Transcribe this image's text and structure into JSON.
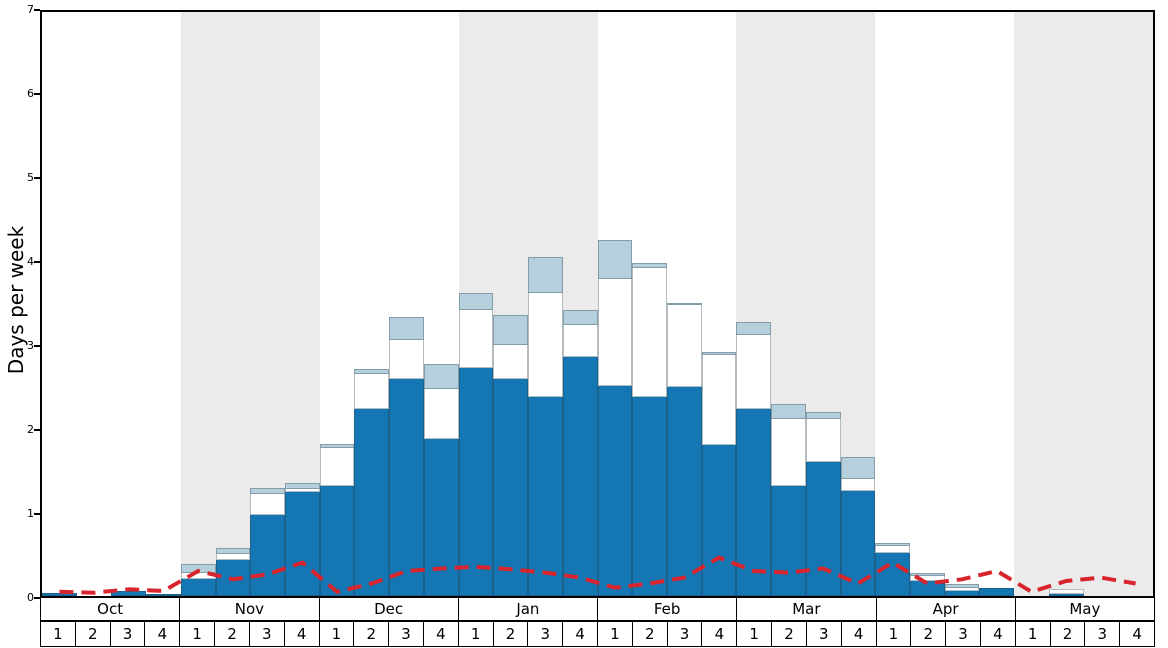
{
  "chart_data": {
    "type": "bar",
    "stacked": true,
    "title": "",
    "xlabel": "",
    "ylabel": "Days per week",
    "ylim": [
      0,
      7
    ],
    "yticks": [
      "0",
      "1",
      "2",
      "3",
      "4",
      "5",
      "6",
      "7"
    ],
    "grid": false,
    "legend": "none",
    "months": [
      "Oct",
      "Nov",
      "Dec",
      "Jan",
      "Feb",
      "Mar",
      "Apr",
      "May"
    ],
    "week_labels": [
      "1",
      "2",
      "3",
      "4"
    ],
    "alternating_band_color": "#ebebeb",
    "series": [
      {
        "name": "dark-blue",
        "color": "#1576b4",
        "values": [
          0.04,
          0,
          0.06,
          0.02,
          0.2,
          0.43,
          0.97,
          1.25,
          1.32,
          2.24,
          2.6,
          1.88,
          2.73,
          2.6,
          2.38,
          2.87,
          2.52,
          2.38,
          2.51,
          1.81,
          2.24,
          1.32,
          1.61,
          1.26,
          0.51,
          0.18,
          0.06,
          0.1,
          0,
          0.03,
          0,
          0
        ]
      },
      {
        "name": "white",
        "color": "#ffffff",
        "values": [
          0,
          0,
          0,
          0,
          0.08,
          0.07,
          0.25,
          0.03,
          0.46,
          0.42,
          0.47,
          0.6,
          0.7,
          0.41,
          1.25,
          0.38,
          1.28,
          1.55,
          0.98,
          1.08,
          0.89,
          0.8,
          0.51,
          0.14,
          0.09,
          0.06,
          0.04,
          0,
          0,
          0.05,
          0,
          0
        ]
      },
      {
        "name": "light-blue",
        "color": "#b5cfdd",
        "values": [
          0,
          0,
          0,
          0,
          0.1,
          0.07,
          0.07,
          0.07,
          0.04,
          0.06,
          0.28,
          0.3,
          0.2,
          0.36,
          0.43,
          0.18,
          0.47,
          0.06,
          0.02,
          0.04,
          0.16,
          0.18,
          0.09,
          0.27,
          0.03,
          0.03,
          0.05,
          0,
          0,
          0,
          0,
          0
        ]
      }
    ],
    "line": {
      "name": "red-dashed",
      "style": "dashed",
      "color": "#d8242c",
      "values": [
        0.05,
        0.04,
        0.08,
        0.06,
        0.3,
        0.2,
        0.26,
        0.4,
        0.05,
        0.15,
        0.3,
        0.33,
        0.35,
        0.32,
        0.28,
        0.22,
        0.1,
        0.15,
        0.22,
        0.46,
        0.3,
        0.28,
        0.33,
        0.15,
        0.4,
        0.15,
        0.2,
        0.3,
        0.05,
        0.18,
        0.22,
        0.15
      ]
    }
  }
}
